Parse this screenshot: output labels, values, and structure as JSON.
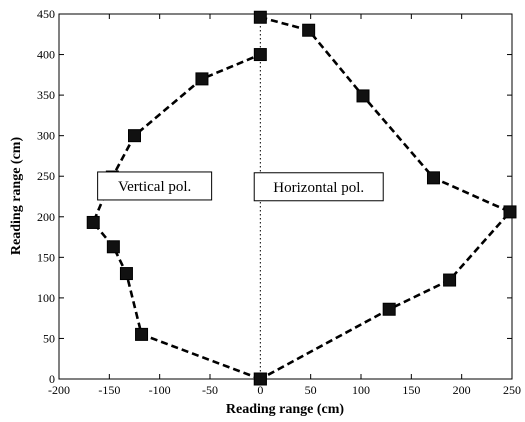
{
  "chart_data": {
    "type": "scatter",
    "xlabel": "Reading range (cm)",
    "ylabel": "Reading range (cm)",
    "xlim": [
      -200,
      250
    ],
    "ylim": [
      0,
      450
    ],
    "xticks": [
      "-200",
      "-150",
      "-100",
      "-50",
      "0",
      "50",
      "100",
      "150",
      "200",
      "250"
    ],
    "yticks": [
      "0",
      "50",
      "100",
      "150",
      "200",
      "250",
      "300",
      "350",
      "400",
      "450"
    ],
    "grid": false,
    "series": [
      {
        "style": "dashed-line-square-markers",
        "color": "#000000",
        "x": [
          0,
          -118,
          -133,
          -146,
          -166,
          -147,
          -125,
          -58,
          0
        ],
        "y": [
          0,
          55,
          130,
          163,
          193,
          249,
          300,
          370,
          400
        ]
      },
      {
        "style": "dashed-line-square-markers",
        "color": "#000000",
        "x": [
          0,
          48,
          102,
          172,
          248,
          188,
          128,
          0
        ],
        "y": [
          446,
          430,
          349,
          248,
          206,
          122,
          86,
          0
        ]
      }
    ],
    "divider": {
      "x": 0,
      "style": "dotted"
    },
    "annotations": [
      {
        "text": "Vertical pol.",
        "x": -105,
        "y": 238
      },
      {
        "text": "Horizontal pol.",
        "x": 58,
        "y": 237
      }
    ]
  }
}
